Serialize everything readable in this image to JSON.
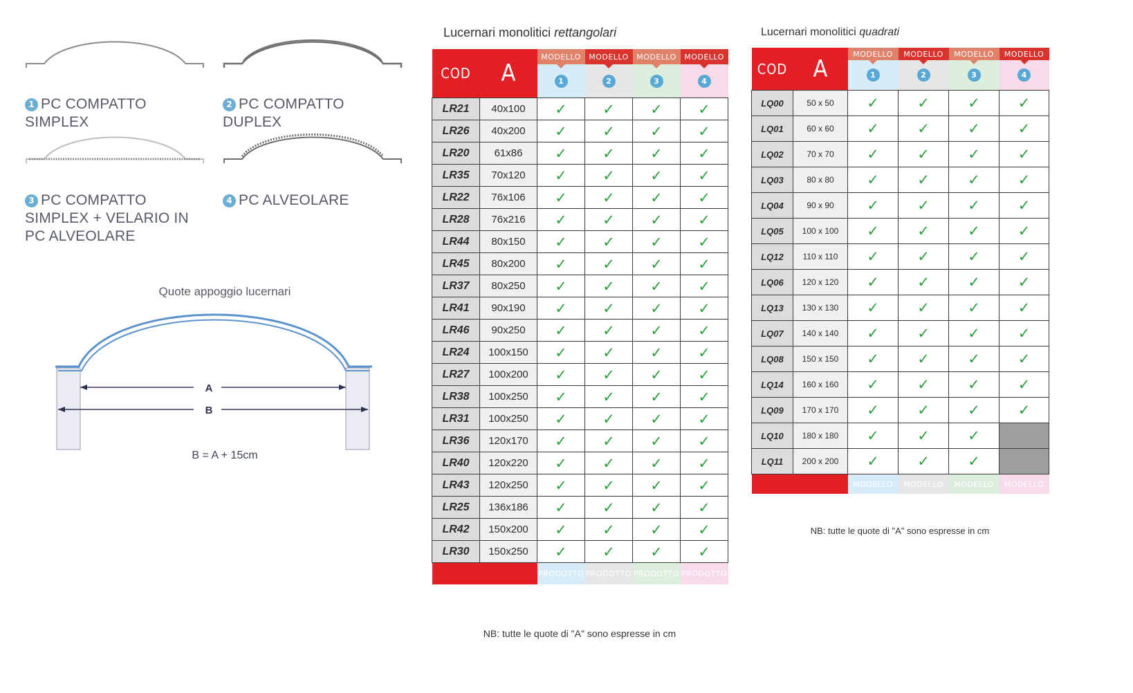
{
  "profiles": [
    {
      "num": "1",
      "label": "PC COMPATTO\nSIMPLEX"
    },
    {
      "num": "2",
      "label": "PC COMPATTO\nDUPLEX"
    },
    {
      "num": "3",
      "label": "PC COMPATTO\nSIMPLEX + VELARIO IN\nPC ALVEOLARE"
    },
    {
      "num": "4",
      "label": "PC ALVEOLARE"
    }
  ],
  "diagram": {
    "title": "Quote appoggio lucernari",
    "dim_a": "A",
    "dim_b": "B",
    "formula": "B = A + 15cm"
  },
  "colors": {
    "header_red": "#e31e24",
    "check_green": "#2e9d3f",
    "model1": "#d6ecf8",
    "model2": "#e6e6e6",
    "model3": "#dceedd",
    "model4": "#f8dbe9",
    "not_available": "#9e9e9e"
  },
  "rect": {
    "title_plain": "Lucernari monolitici ",
    "title_italic": "rettangolari",
    "col_cod": "COD",
    "col_a": "A",
    "model_label": "MODELLO",
    "models": [
      "1",
      "2",
      "3",
      "4"
    ],
    "footer_label": "PRODOTTO",
    "check": "✓",
    "rows": [
      {
        "code": "LR21",
        "size": "40x100",
        "avail": [
          true,
          true,
          true,
          true
        ]
      },
      {
        "code": "LR26",
        "size": "40x200",
        "avail": [
          true,
          true,
          true,
          true
        ]
      },
      {
        "code": "LR20",
        "size": "61x86",
        "avail": [
          true,
          true,
          true,
          true
        ]
      },
      {
        "code": "LR35",
        "size": "70x120",
        "avail": [
          true,
          true,
          true,
          true
        ]
      },
      {
        "code": "LR22",
        "size": "76x106",
        "avail": [
          true,
          true,
          true,
          true
        ]
      },
      {
        "code": "LR28",
        "size": "76x216",
        "avail": [
          true,
          true,
          true,
          true
        ]
      },
      {
        "code": "LR44",
        "size": "80x150",
        "avail": [
          true,
          true,
          true,
          true
        ]
      },
      {
        "code": "LR45",
        "size": "80x200",
        "avail": [
          true,
          true,
          true,
          true
        ]
      },
      {
        "code": "LR37",
        "size": "80x250",
        "avail": [
          true,
          true,
          true,
          true
        ]
      },
      {
        "code": "LR41",
        "size": "90x190",
        "avail": [
          true,
          true,
          true,
          true
        ]
      },
      {
        "code": "LR46",
        "size": "90x250",
        "avail": [
          true,
          true,
          true,
          true
        ]
      },
      {
        "code": "LR24",
        "size": "100x150",
        "avail": [
          true,
          true,
          true,
          true
        ]
      },
      {
        "code": "LR27",
        "size": "100x200",
        "avail": [
          true,
          true,
          true,
          true
        ]
      },
      {
        "code": "LR38",
        "size": "100x250",
        "avail": [
          true,
          true,
          true,
          true
        ]
      },
      {
        "code": "LR31",
        "size": "100x250",
        "avail": [
          true,
          true,
          true,
          true
        ]
      },
      {
        "code": "LR36",
        "size": "120x170",
        "avail": [
          true,
          true,
          true,
          true
        ]
      },
      {
        "code": "LR40",
        "size": "120x220",
        "avail": [
          true,
          true,
          true,
          true
        ]
      },
      {
        "code": "LR43",
        "size": "120x250",
        "avail": [
          true,
          true,
          true,
          true
        ]
      },
      {
        "code": "LR25",
        "size": "136x186",
        "avail": [
          true,
          true,
          true,
          true
        ]
      },
      {
        "code": "LR42",
        "size": "150x200",
        "avail": [
          true,
          true,
          true,
          true
        ]
      },
      {
        "code": "LR30",
        "size": "150x250",
        "avail": [
          true,
          true,
          true,
          true
        ]
      }
    ],
    "note": "NB: tutte le quote di \"A\" sono espresse in cm"
  },
  "square": {
    "title_plain": "Lucernari monolitici ",
    "title_italic": "quadrati",
    "col_cod": "COD",
    "col_a": "A",
    "model_label": "MODELLO",
    "models": [
      "1",
      "2",
      "3",
      "4"
    ],
    "footer_label": "MODELLO",
    "check": "✓",
    "rows": [
      {
        "code": "LQ00",
        "size": "50 x 50",
        "avail": [
          true,
          true,
          true,
          true
        ]
      },
      {
        "code": "LQ01",
        "size": "60 x 60",
        "avail": [
          true,
          true,
          true,
          true
        ]
      },
      {
        "code": "LQ02",
        "size": "70 x 70",
        "avail": [
          true,
          true,
          true,
          true
        ]
      },
      {
        "code": "LQ03",
        "size": "80 x 80",
        "avail": [
          true,
          true,
          true,
          true
        ]
      },
      {
        "code": "LQ04",
        "size": "90 x 90",
        "avail": [
          true,
          true,
          true,
          true
        ]
      },
      {
        "code": "LQ05",
        "size": "100 x 100",
        "avail": [
          true,
          true,
          true,
          true
        ]
      },
      {
        "code": "LQ12",
        "size": "110 x 110",
        "avail": [
          true,
          true,
          true,
          true
        ]
      },
      {
        "code": "LQ06",
        "size": "120 x 120",
        "avail": [
          true,
          true,
          true,
          true
        ]
      },
      {
        "code": "LQ13",
        "size": "130 x 130",
        "avail": [
          true,
          true,
          true,
          true
        ]
      },
      {
        "code": "LQ07",
        "size": "140 x 140",
        "avail": [
          true,
          true,
          true,
          true
        ]
      },
      {
        "code": "LQ08",
        "size": "150 x 150",
        "avail": [
          true,
          true,
          true,
          true
        ]
      },
      {
        "code": "LQ14",
        "size": "160 x 160",
        "avail": [
          true,
          true,
          true,
          true
        ]
      },
      {
        "code": "LQ09",
        "size": "170 x 170",
        "avail": [
          true,
          true,
          true,
          true
        ]
      },
      {
        "code": "LQ10",
        "size": "180 x 180",
        "avail": [
          true,
          true,
          true,
          false
        ]
      },
      {
        "code": "LQ11",
        "size": "200 x 200",
        "avail": [
          true,
          true,
          true,
          false
        ]
      }
    ],
    "note": "NB: tutte le quote di \"A\" sono espresse in cm"
  }
}
